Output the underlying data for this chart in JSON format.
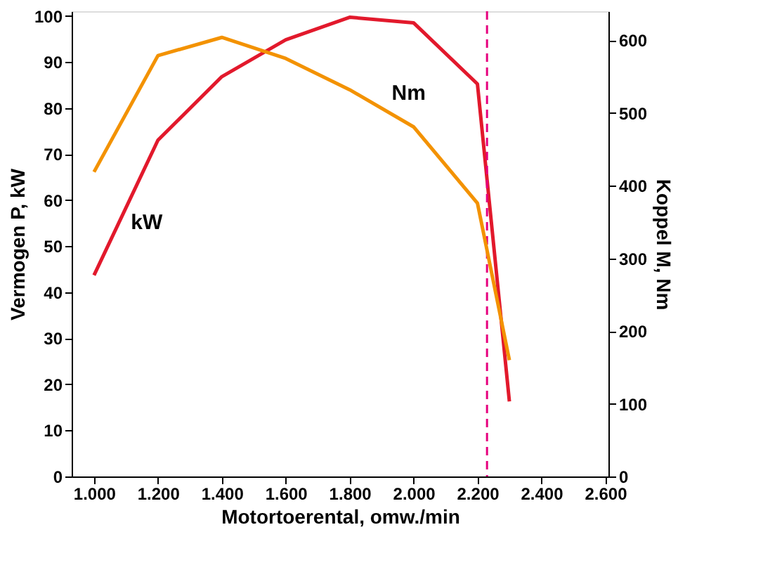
{
  "chart_data": {
    "type": "line",
    "xlabel": "Motortoerental, omw./min",
    "ylabel": "Vermogen P, kW",
    "y2label": "Koppel M, Nm",
    "x": [
      1000,
      1200,
      1400,
      1600,
      1800,
      2000,
      2200,
      2300
    ],
    "series": [
      {
        "name": "kW",
        "color": "#e2192c",
        "values": [
          43.7,
          73,
          86.8,
          94.8,
          99.7,
          98.5,
          85.2,
          16.3
        ]
      },
      {
        "name": "Nm",
        "color": "#f39200",
        "axis": "y2",
        "values": [
          419,
          579,
          604,
          575,
          532,
          481,
          376,
          160
        ]
      }
    ],
    "xlim": [
      930,
      2610
    ],
    "xticks": [
      {
        "value": 1000,
        "label": "1.000"
      },
      {
        "value": 1200,
        "label": "1.200"
      },
      {
        "value": 1400,
        "label": "1.400"
      },
      {
        "value": 1600,
        "label": "1.600"
      },
      {
        "value": 1800,
        "label": "1.800"
      },
      {
        "value": 2000,
        "label": "2.000"
      },
      {
        "value": 2200,
        "label": "2.200"
      },
      {
        "value": 2400,
        "label": "2.400"
      },
      {
        "value": 2600,
        "label": "2.600"
      }
    ],
    "ylim": [
      0,
      101
    ],
    "yticks": [
      0,
      10,
      20,
      30,
      40,
      50,
      60,
      70,
      80,
      90,
      100
    ],
    "y2lim": [
      0,
      640
    ],
    "y2ticks": [
      0,
      100,
      200,
      300,
      400,
      500,
      600
    ],
    "ref_lines": [
      {
        "axis": "x",
        "value": 2230,
        "color": "#e6007e",
        "line_style": "dashed"
      }
    ],
    "grid": false,
    "legend": false,
    "marker": "none",
    "line_style": "solid"
  }
}
